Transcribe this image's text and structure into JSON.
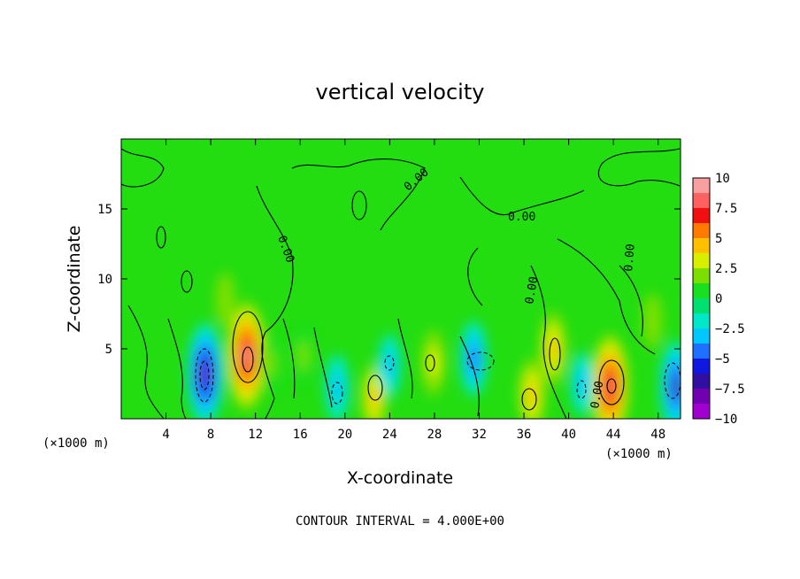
{
  "chart_data": {
    "type": "heatmap",
    "title": "vertical velocity",
    "xlabel": "X-coordinate",
    "ylabel": "Z-coordinate",
    "x_unit_left": "(×1000 m)",
    "x_unit_right": "(×1000 m)",
    "xlim": [
      0,
      50
    ],
    "ylim": [
      0,
      20
    ],
    "x_ticks": [
      4,
      8,
      12,
      16,
      20,
      24,
      28,
      32,
      36,
      40,
      44,
      48
    ],
    "y_ticks": [
      5,
      10,
      15
    ],
    "colorbar": {
      "ticks": [
        10,
        7.5,
        5,
        2.5,
        0,
        -2.5,
        -5,
        -7.5,
        -10
      ],
      "tick_labels": [
        "10",
        "7.5",
        "5",
        "2.5",
        "0",
        "−2.5",
        "−5",
        "−7.5",
        "−10"
      ],
      "colors": [
        "#f8a0a0",
        "#ff6060",
        "#f01010",
        "#ff7a00",
        "#ffc000",
        "#d8f000",
        "#7be000",
        "#18e020",
        "#00e070",
        "#00e8c8",
        "#00c8ff",
        "#2070ff",
        "#1018e0",
        "#3010a0",
        "#7000b0",
        "#a000d0"
      ],
      "range": [
        -10,
        10
      ]
    },
    "contour_interval_text": "CONTOUR INTERVAL = 4.000E+00",
    "contour_labels": [
      "0.00",
      "0.00",
      "0.00",
      "0.00",
      "0.00",
      "0.00"
    ],
    "features": [
      {
        "x": 11.2,
        "z": 4.5,
        "value": 9.0
      },
      {
        "x": 43.7,
        "z": 2.3,
        "value": 8.5
      },
      {
        "x": 7.5,
        "z": 3.2,
        "value": -7.8
      },
      {
        "x": 49.6,
        "z": 2.3,
        "value": -6.5
      },
      {
        "x": 31.5,
        "z": 4.3,
        "value": -4.5
      },
      {
        "x": 38.6,
        "z": 5.0,
        "value": 4.5
      },
      {
        "x": 22.6,
        "z": 1.5,
        "value": 4.0
      },
      {
        "x": 36.7,
        "z": 1.7,
        "value": 4.5
      },
      {
        "x": 27.9,
        "z": 4.0,
        "value": 3.5
      },
      {
        "x": 19.3,
        "z": 2.2,
        "value": -3.5
      },
      {
        "x": 24.0,
        "z": 3.8,
        "value": -3.0
      },
      {
        "x": 41.2,
        "z": 2.5,
        "value": -3.0
      },
      {
        "x": 13.3,
        "z": 4.0,
        "value": 2.5
      },
      {
        "x": 16.3,
        "z": 4.5,
        "value": 2.5
      },
      {
        "x": 9.3,
        "z": 8.5,
        "value": 2.0
      },
      {
        "x": 47.5,
        "z": 7.0,
        "value": 2.0
      }
    ]
  }
}
